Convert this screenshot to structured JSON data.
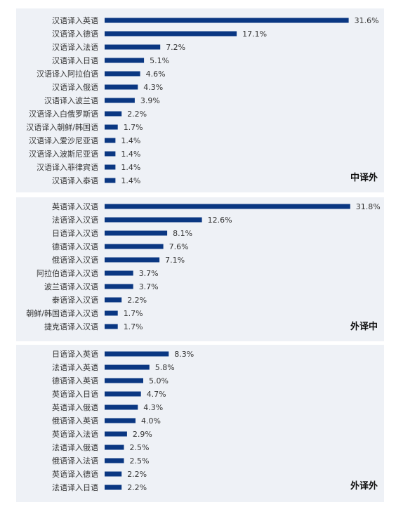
{
  "colors": {
    "bar": "#0a3782",
    "panel_bg": "#eef1f6"
  },
  "chart_data": [
    {
      "type": "bar",
      "orientation": "horizontal",
      "title": "中译外",
      "categories": [
        "汉语译入英语",
        "汉语译入德语",
        "汉语译入法语",
        "汉语译入日语",
        "汉语译入阿拉伯语",
        "汉语译入俄语",
        "汉语译入波兰语",
        "汉语译入白俄罗斯语",
        "汉语译入朝鲜/韩国语",
        "汉语译入爱沙尼亚语",
        "汉语译入波斯尼亚语",
        "汉语译入菲律宾语",
        "汉语译入泰语"
      ],
      "values": [
        31.6,
        17.1,
        7.2,
        5.1,
        4.6,
        4.3,
        3.9,
        2.2,
        1.7,
        1.4,
        1.4,
        1.4,
        1.4
      ],
      "value_labels": [
        "31.6%",
        "17.1%",
        "7.2%",
        "5.1%",
        "4.6%",
        "4.3%",
        "3.9%",
        "2.2%",
        "1.7%",
        "1.4%",
        "1.4%",
        "1.4%",
        "1.4%"
      ]
    },
    {
      "type": "bar",
      "orientation": "horizontal",
      "title": "外译中",
      "categories": [
        "英语译入汉语",
        "法语译入汉语",
        "日语译入汉语",
        "德语译入汉语",
        "俄语译入汉语",
        "阿拉伯语译入汉语",
        "波兰语译入汉语",
        "泰语译入汉语",
        "朝鲜/韩国语译入汉语",
        "捷克语译入汉语"
      ],
      "values": [
        31.8,
        12.6,
        8.1,
        7.6,
        7.1,
        3.7,
        3.7,
        2.2,
        1.7,
        1.7
      ],
      "value_labels": [
        "31.8%",
        "12.6%",
        "8.1%",
        "7.6%",
        "7.1%",
        "3.7%",
        "3.7%",
        "2.2%",
        "1.7%",
        "1.7%"
      ]
    },
    {
      "type": "bar",
      "orientation": "horizontal",
      "title": "外译外",
      "categories": [
        "日语译入英语",
        "法语译入英语",
        "德语译入英语",
        "英语译入日语",
        "英语译入俄语",
        "俄语译入英语",
        "英语译入法语",
        "法语译入俄语",
        "俄语译入法语",
        "英语译入德语",
        "法语译入日语"
      ],
      "values": [
        8.3,
        5.8,
        5.0,
        4.7,
        4.3,
        4.0,
        2.9,
        2.5,
        2.5,
        2.2,
        2.2
      ],
      "value_labels": [
        "8.3%",
        "5.8%",
        "5.0%",
        "4.7%",
        "4.3%",
        "4.0%",
        "2.9%",
        "2.5%",
        "2.5%",
        "2.2%",
        "2.2%"
      ]
    }
  ]
}
